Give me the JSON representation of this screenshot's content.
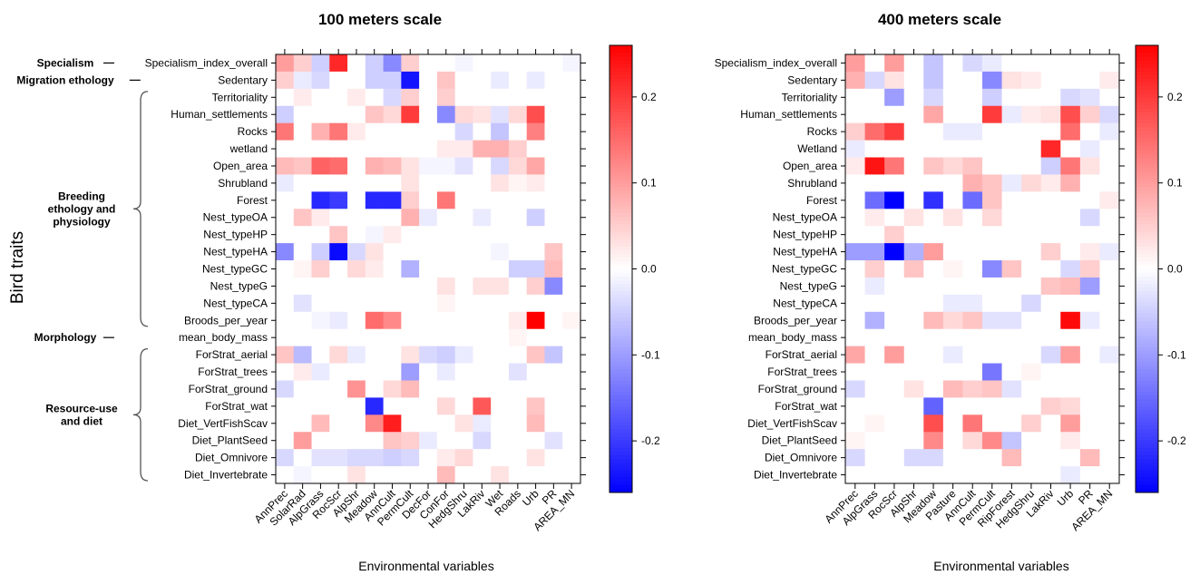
{
  "figure": {
    "ylabel": "Bird traits",
    "colors": {
      "neg": "#0000ff",
      "mid": "#ffffff",
      "pos": "#ff0000",
      "frame": "#000000",
      "bracket": "#555555"
    }
  },
  "chart_data": [
    {
      "type": "heatmap",
      "title": "100 meters scale",
      "xlabel": "Environmental variables",
      "rows": [
        "Specialism_index_overall",
        "Sedentary",
        "Territoriality",
        "Human_settlements",
        "Rocks",
        "wetland",
        "Open_area",
        "Shrubland",
        "Forest",
        "Nest_typeOA",
        "Nest_typeHP",
        "Nest_typeHA",
        "Nest_typeGC",
        "Nest_typeG",
        "Nest_typeCA",
        "Broods_per_year",
        "mean_body_mass",
        "ForStrat_aerial",
        "ForStrat_trees",
        "ForStrat_ground",
        "ForStrat_wat",
        "Diet_VertFishScav",
        "Diet_PlantSeed",
        "Diet_Omnivore",
        "Diet_Invertebrate"
      ],
      "columns": [
        "AnnPrec",
        "SolarRad",
        "AlpGrass",
        "RocScr",
        "AlpShr",
        "Meadow",
        "AnnCult",
        "PermCult",
        "DecFor",
        "ConFor",
        "HedgShru",
        "LakRiv",
        "Wet",
        "Roads",
        "Urb",
        "PR",
        "AREA_MN"
      ],
      "groups": [
        {
          "label": "Specialism",
          "rows": [
            0,
            0
          ]
        },
        {
          "label": "Migration ethology",
          "rows": [
            1,
            1
          ]
        },
        {
          "label": "Breeding ethology and physiology",
          "rows": [
            2,
            15
          ]
        },
        {
          "label": "Morphology",
          "rows": [
            16,
            16
          ]
        },
        {
          "label": "Resource-use and diet",
          "rows": [
            17,
            24
          ]
        }
      ],
      "colorbar": {
        "range": [
          -0.26,
          0.26
        ],
        "ticks": [
          0.2,
          0.1,
          0.0,
          -0.1,
          -0.2
        ],
        "tick_labels": [
          "0.2",
          "0.1",
          "0.0",
          "-0.1",
          "-0.2"
        ]
      },
      "values": [
        [
          0.1,
          0.05,
          -0.05,
          0.22,
          0,
          -0.05,
          -0.12,
          0.05,
          0,
          0,
          -0.01,
          0,
          0,
          0,
          0,
          0,
          -0.01
        ],
        [
          0.05,
          -0.02,
          -0.04,
          0,
          0,
          -0.05,
          -0.05,
          -0.24,
          0,
          0.06,
          0,
          0,
          -0.02,
          0,
          -0.02,
          0,
          0
        ],
        [
          0,
          0.02,
          0,
          0,
          0.02,
          0,
          -0.04,
          0.05,
          0,
          0.05,
          0,
          0,
          0,
          0,
          0,
          0,
          0
        ],
        [
          -0.05,
          0,
          0,
          0,
          0,
          0.06,
          0.04,
          0.2,
          0,
          -0.12,
          0.04,
          0.03,
          -0.03,
          0.04,
          0.18,
          0,
          0
        ],
        [
          0.14,
          0,
          0.08,
          0.14,
          0.02,
          0,
          0,
          0,
          0,
          0,
          -0.04,
          0,
          -0.06,
          0,
          0.13,
          0,
          0
        ],
        [
          0,
          0,
          0,
          0,
          0,
          0,
          0,
          0,
          0,
          0.02,
          0.02,
          0.08,
          0.08,
          0.05,
          0,
          0,
          0
        ],
        [
          0.07,
          0.06,
          0.16,
          0.15,
          0,
          0.08,
          0.07,
          0.03,
          -0.01,
          -0.01,
          -0.03,
          0,
          -0.04,
          0.04,
          0.09,
          0,
          0
        ],
        [
          -0.02,
          0,
          0,
          0,
          0,
          0,
          0,
          0.03,
          0,
          0,
          0,
          0,
          0.03,
          0.01,
          0.02,
          0,
          0
        ],
        [
          0,
          0,
          -0.22,
          -0.2,
          0,
          -0.22,
          -0.22,
          0.05,
          0,
          0.14,
          0,
          0,
          0,
          0,
          0,
          0,
          0
        ],
        [
          0,
          0.06,
          0.02,
          0,
          0,
          0,
          0,
          0.08,
          -0.02,
          0,
          0,
          -0.02,
          0,
          0,
          -0.05,
          0,
          0
        ],
        [
          0,
          0,
          0,
          0.06,
          0,
          -0.01,
          0.02,
          0,
          0,
          0,
          0,
          0,
          0,
          0,
          0,
          0,
          0
        ],
        [
          -0.12,
          0,
          -0.05,
          -0.25,
          -0.04,
          0.03,
          0,
          0,
          0,
          0,
          0,
          0,
          -0.01,
          0,
          0,
          0.06,
          0
        ],
        [
          0,
          0.01,
          0.05,
          0,
          0.04,
          0.02,
          0,
          -0.08,
          0,
          0,
          0,
          0,
          0,
          -0.05,
          -0.05,
          0.07,
          0
        ],
        [
          0,
          0,
          0,
          0,
          0,
          0,
          0,
          0,
          0,
          0.03,
          0,
          0.03,
          0.03,
          0,
          0.05,
          -0.12,
          0
        ],
        [
          0,
          -0.03,
          0,
          0,
          0,
          0,
          0,
          0,
          0,
          0.01,
          0,
          0,
          0,
          0,
          0,
          0,
          0
        ],
        [
          0,
          0,
          -0.01,
          -0.02,
          0,
          0.15,
          0.12,
          0,
          0,
          0,
          0,
          0,
          0,
          0.02,
          0.26,
          0,
          0.01
        ],
        [
          0,
          0,
          0,
          0,
          0,
          0,
          0,
          0,
          0,
          0,
          0,
          0,
          0,
          0.01,
          0,
          0,
          0
        ],
        [
          0.06,
          -0.07,
          0,
          0.04,
          -0.02,
          0,
          0,
          0.03,
          -0.04,
          -0.05,
          -0.02,
          0,
          0,
          0,
          0.06,
          -0.06,
          0
        ],
        [
          0,
          0.02,
          -0.02,
          0,
          0,
          0,
          0,
          -0.1,
          0,
          -0.02,
          0,
          0,
          0,
          -0.03,
          0,
          0,
          0
        ],
        [
          -0.04,
          0,
          0,
          0,
          0.11,
          0,
          0.04,
          0.07,
          0,
          0,
          0,
          0,
          0,
          0,
          0,
          0,
          0
        ],
        [
          0,
          0,
          0,
          0,
          0,
          -0.22,
          0,
          0,
          0,
          0.04,
          0,
          0.17,
          0,
          0,
          0.06,
          0,
          0
        ],
        [
          0,
          0,
          0.07,
          0,
          0,
          0.12,
          0.23,
          0,
          0,
          0,
          0.03,
          -0.02,
          0,
          0,
          0.07,
          0,
          0
        ],
        [
          0,
          0.1,
          0,
          0,
          0,
          0,
          0.06,
          0.05,
          -0.02,
          0,
          0,
          -0.04,
          0,
          0,
          0,
          -0.03,
          0
        ],
        [
          -0.04,
          0,
          -0.03,
          -0.03,
          -0.04,
          -0.04,
          -0.05,
          -0.04,
          0,
          0.02,
          0.04,
          0,
          0,
          0,
          0.03,
          0,
          0
        ],
        [
          0,
          -0.01,
          0,
          0,
          0.03,
          0,
          0,
          0,
          0,
          0.07,
          0,
          0,
          0.03,
          0,
          0,
          0,
          0
        ]
      ]
    },
    {
      "type": "heatmap",
      "title": "400 meters scale",
      "xlabel": "Environmental variables",
      "rows": [
        "Specialism_index_overall",
        "Sedentary",
        "Territoriality",
        "Human_settlements",
        "Rocks",
        "Wetland",
        "Open_area",
        "Shrubland",
        "Forest",
        "Nest_typeOA",
        "Nest_typeHP",
        "Nest_typeHA",
        "Nest_typeGC",
        "Nest_typeG",
        "Nest_typeCA",
        "Broods_per_year",
        "mean_body_mass",
        "ForStrat_aerial",
        "ForStrat_trees",
        "ForStrat_ground",
        "ForStrat_wat",
        "Diet_VertFishScav",
        "Diet_PlantSeed",
        "Diet_Omnivore",
        "Diet_Invertebrate"
      ],
      "columns": [
        "AnnPrec",
        "AlpGrass",
        "RocScr",
        "AlpShr",
        "Meadow",
        "Pasture",
        "AnnCult",
        "PermCult",
        "RipForest",
        "HedgShru",
        "LakRiv",
        "Urb",
        "PR",
        "AREA_MN"
      ],
      "groups": [],
      "colorbar": {
        "range": [
          -0.26,
          0.26
        ],
        "ticks": [
          0.2,
          0.1,
          0.0,
          -0.1,
          -0.2
        ],
        "tick_labels": [
          "0.2",
          "0.1",
          "0.0",
          "-0.1",
          "-0.2"
        ]
      },
      "values": [
        [
          0.1,
          0,
          0.1,
          0,
          -0.06,
          0,
          -0.04,
          -0.02,
          0,
          0,
          0,
          0,
          0,
          0
        ],
        [
          0.08,
          -0.04,
          0.03,
          0,
          -0.06,
          0,
          0,
          -0.12,
          0.03,
          0.02,
          0,
          0,
          0,
          0.02
        ],
        [
          0,
          0,
          -0.1,
          0,
          -0.04,
          0,
          0,
          -0.05,
          0,
          0,
          0,
          -0.04,
          -0.03,
          0
        ],
        [
          0,
          0,
          0,
          0,
          0.09,
          0,
          0,
          0.2,
          -0.02,
          0.02,
          0.03,
          0.18,
          0.05,
          -0.04
        ],
        [
          0.05,
          0.15,
          0.2,
          0,
          0,
          -0.02,
          -0.02,
          0,
          0,
          0,
          0,
          0.15,
          0,
          -0.02
        ],
        [
          -0.02,
          0,
          0,
          0,
          0,
          0,
          0,
          0,
          0,
          0,
          0.22,
          0,
          -0.02,
          0
        ],
        [
          0.02,
          0.24,
          0.14,
          0,
          0.06,
          0.04,
          0.06,
          0,
          0,
          0,
          -0.05,
          0.14,
          0.03,
          0
        ],
        [
          0,
          0,
          0,
          0,
          0,
          0,
          0.08,
          0.06,
          -0.02,
          0.04,
          0.02,
          0.08,
          0,
          0
        ],
        [
          0,
          -0.15,
          -0.26,
          0,
          -0.21,
          0,
          -0.15,
          0.06,
          0,
          0,
          0,
          0,
          0,
          0.02
        ],
        [
          0,
          0.02,
          0,
          0.03,
          0,
          0.03,
          0,
          0.04,
          0,
          0,
          0,
          0,
          -0.04,
          0
        ],
        [
          0,
          0,
          0.05,
          0,
          0,
          0,
          0,
          0,
          0,
          0,
          0,
          0,
          0,
          0
        ],
        [
          -0.1,
          -0.1,
          -0.26,
          -0.08,
          0.1,
          0,
          0,
          0,
          0,
          0,
          0.05,
          0,
          0.02,
          -0.02
        ],
        [
          0,
          0.05,
          0,
          0.06,
          0,
          0.01,
          0,
          -0.12,
          0.06,
          0,
          0,
          -0.04,
          0.05,
          0
        ],
        [
          0,
          -0.02,
          0,
          0,
          0,
          0,
          0,
          0,
          0,
          0,
          0.06,
          0.07,
          -0.1,
          0
        ],
        [
          0,
          0,
          0,
          0,
          0,
          -0.02,
          -0.02,
          0,
          0,
          -0.04,
          0,
          0,
          0,
          0
        ],
        [
          0,
          -0.08,
          0,
          0,
          0.07,
          0.04,
          0.06,
          -0.03,
          -0.03,
          0,
          0,
          0.25,
          -0.02,
          0
        ],
        [
          0,
          0,
          0,
          0,
          0,
          0,
          0,
          0,
          0,
          0,
          0,
          0,
          0,
          0
        ],
        [
          0.09,
          0,
          0.1,
          0,
          0,
          -0.02,
          0,
          0,
          0,
          0,
          -0.04,
          0.1,
          0,
          -0.02
        ],
        [
          0,
          0,
          0,
          0,
          0,
          0,
          0,
          -0.14,
          0,
          0.01,
          0,
          0,
          0,
          0
        ],
        [
          -0.04,
          0,
          0,
          0.03,
          0,
          0.07,
          0.05,
          0.06,
          -0.03,
          0,
          0,
          0,
          0,
          0
        ],
        [
          0,
          0,
          0,
          0,
          -0.16,
          0,
          0,
          0,
          0,
          0,
          0.05,
          0.04,
          0,
          0
        ],
        [
          0,
          0.01,
          0,
          0,
          0.18,
          0,
          0.14,
          0,
          0,
          0.05,
          0,
          0.1,
          0,
          0
        ],
        [
          0.01,
          0,
          0,
          0,
          0.12,
          0,
          0.04,
          0.12,
          -0.06,
          0,
          0,
          0.02,
          0,
          0
        ],
        [
          -0.04,
          0,
          0,
          -0.04,
          -0.04,
          0,
          0,
          0,
          0.07,
          0,
          0,
          0,
          0.07,
          0
        ],
        [
          0,
          0,
          0,
          0,
          0,
          0,
          0,
          0,
          0,
          0,
          0,
          -0.02,
          0,
          0
        ]
      ]
    }
  ]
}
